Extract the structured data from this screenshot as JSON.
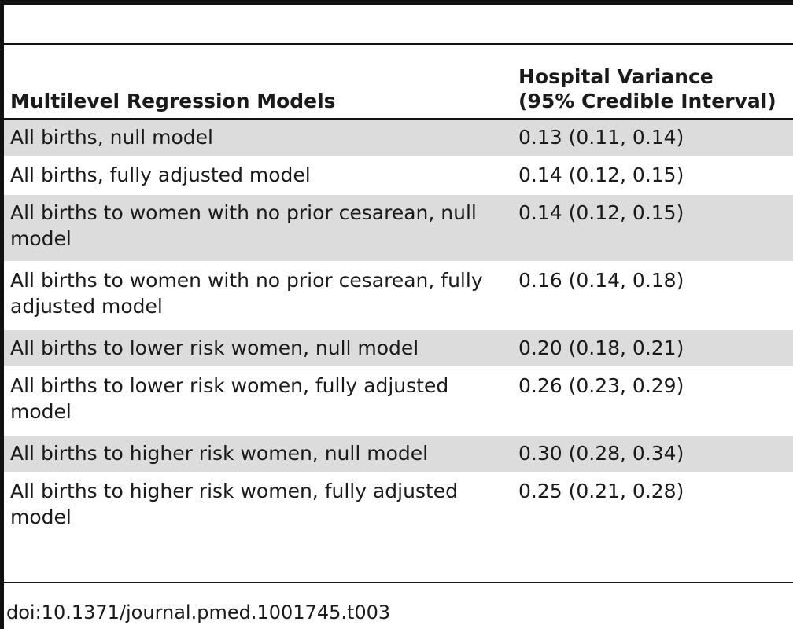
{
  "table": {
    "headers": {
      "models": "Multilevel Regression Models",
      "variance_line1": "Hospital Variance",
      "variance_line2": "(95% Credible Interval)"
    },
    "rows": [
      {
        "model": "All births, null model",
        "value": "0.13 (0.11, 0.14)"
      },
      {
        "model": "All births, fully adjusted model",
        "value": "0.14 (0.12, 0.15)"
      },
      {
        "model": "All births to women with no prior cesarean, null model",
        "value": "0.14 (0.12, 0.15)"
      },
      {
        "model": "All births to women with no prior cesarean, fully adjusted model",
        "value": "0.16 (0.14, 0.18)"
      },
      {
        "model": "All births to lower risk women, null model",
        "value": "0.20 (0.18, 0.21)"
      },
      {
        "model": "All births to lower risk women, fully adjusted model",
        "value": "0.26 (0.23, 0.29)"
      },
      {
        "model": "All births to higher risk women, null model",
        "value": "0.30 (0.28, 0.34)"
      },
      {
        "model": "All births to higher risk women, fully adjusted model",
        "value": "0.25 (0.21, 0.28)"
      }
    ]
  },
  "footer": {
    "doi": "doi:10.1371/journal.pmed.1001745.t003"
  },
  "colors": {
    "rule": "#111111",
    "row_shade": "#dcdcdc",
    "text": "#1a1a1a"
  }
}
